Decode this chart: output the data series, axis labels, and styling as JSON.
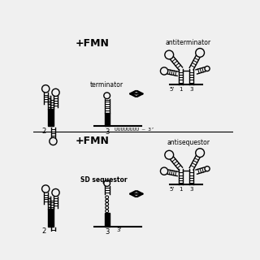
{
  "bg_color": "#f0f0f0",
  "line_color": "#000000",
  "top_fmn": "+FMN",
  "bot_fmn": "+FMN",
  "label_terminator": "terminator",
  "label_antiterminator": "antiterminator",
  "label_sd": "SD sequestor",
  "label_antisequestor": "antisequestor",
  "uuuu_text": "UUUUUUUU – 3’",
  "three_prime": "3’",
  "five_prime": "5’",
  "n1": "1",
  "n2": "2",
  "n3": "3"
}
